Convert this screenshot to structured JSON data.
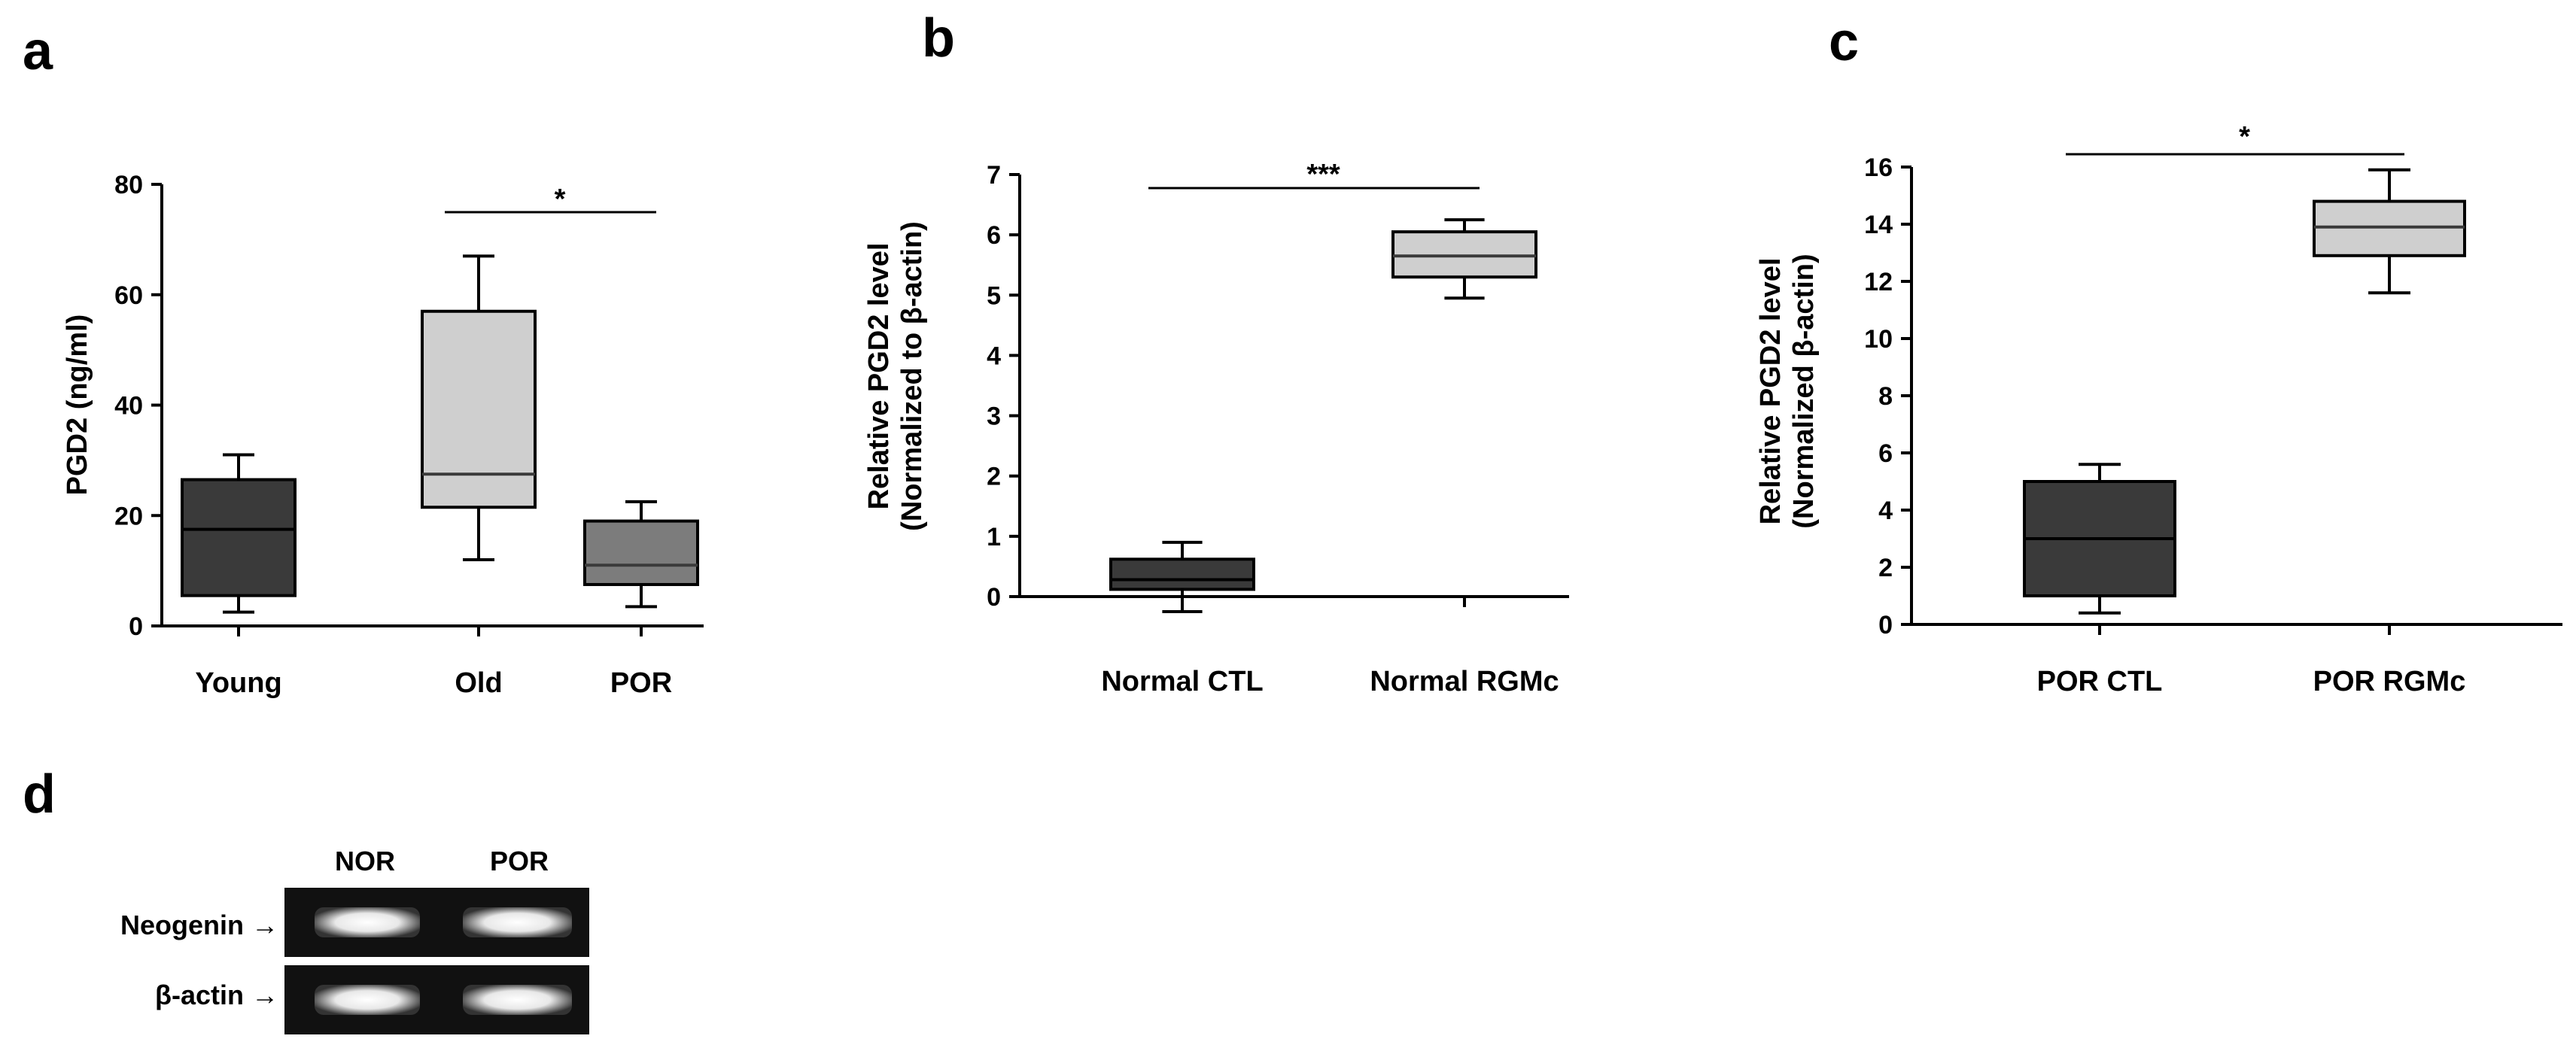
{
  "panels": [
    "a",
    "b",
    "c",
    "d"
  ],
  "colors": {
    "dark": "#3a3a3a",
    "light": "#cfcfcf",
    "mid": "#7c7c7c",
    "axis": "#000000",
    "gel": "#111111",
    "band": "#f2f2f2"
  },
  "chart_data": [
    {
      "panel": "a",
      "type": "box",
      "ylabel": "PGD2 (ng/ml)",
      "xlabel": "",
      "ylim": [
        0,
        80
      ],
      "yticks": [
        "0",
        "20",
        "40",
        "60",
        "80"
      ],
      "categories": [
        "Young",
        "Old",
        "POR"
      ],
      "boxes": [
        {
          "name": "Young",
          "min": 2.5,
          "q1": 5.5,
          "median": 17.5,
          "q3": 26.5,
          "max": 31,
          "color": "#3a3a3a"
        },
        {
          "name": "Old",
          "min": 12,
          "q1": 21.5,
          "median": 27.5,
          "q3": 57,
          "max": 67,
          "color": "#cfcfcf"
        },
        {
          "name": "POR",
          "min": 3.5,
          "q1": 7.5,
          "median": 11,
          "q3": 19,
          "max": 22.5,
          "color": "#7c7c7c"
        }
      ],
      "significance": [
        {
          "from": "Old",
          "to": "POR",
          "label": "*"
        }
      ]
    },
    {
      "panel": "b",
      "type": "box",
      "ylabel": "Relative PGD2 level",
      "ylabel2": "(Normalized to β-actin)",
      "xlabel": "",
      "ylim": [
        0,
        7
      ],
      "yticks": [
        "0",
        "1",
        "2",
        "3",
        "4",
        "5",
        "6",
        "7"
      ],
      "categories": [
        "Normal CTL",
        "Normal RGMc"
      ],
      "boxes": [
        {
          "name": "Normal CTL",
          "min": -0.25,
          "q1": 0.12,
          "median": 0.28,
          "q3": 0.62,
          "max": 0.9,
          "color": "#3a3a3a"
        },
        {
          "name": "Normal RGMc",
          "min": 4.95,
          "q1": 5.3,
          "median": 5.65,
          "q3": 6.05,
          "max": 6.25,
          "color": "#cfcfcf"
        }
      ],
      "significance": [
        {
          "from": "Normal CTL",
          "to": "Normal RGMc",
          "label": "***"
        }
      ]
    },
    {
      "panel": "c",
      "type": "box",
      "ylabel": "Relative PGD2 level",
      "ylabel2": "(Normalized β-actin)",
      "xlabel": "",
      "ylim": [
        0,
        16
      ],
      "yticks": [
        "0",
        "2",
        "4",
        "6",
        "8",
        "10",
        "12",
        "14",
        "16"
      ],
      "categories": [
        "POR CTL",
        "POR RGMc"
      ],
      "boxes": [
        {
          "name": "POR CTL",
          "min": 0.4,
          "q1": 1,
          "median": 3,
          "q3": 5,
          "max": 5.6,
          "color": "#3a3a3a"
        },
        {
          "name": "POR RGMc",
          "min": 11.6,
          "q1": 12.9,
          "median": 13.9,
          "q3": 14.8,
          "max": 15.9,
          "color": "#cfcfcf"
        }
      ],
      "significance": [
        {
          "from": "POR CTL",
          "to": "POR RGMc",
          "label": "*"
        }
      ]
    }
  ],
  "gel": {
    "panel": "d",
    "lanes": [
      "NOR",
      "POR"
    ],
    "rows": [
      {
        "label": "Neogenin →"
      },
      {
        "label": "β-actin →"
      }
    ]
  }
}
